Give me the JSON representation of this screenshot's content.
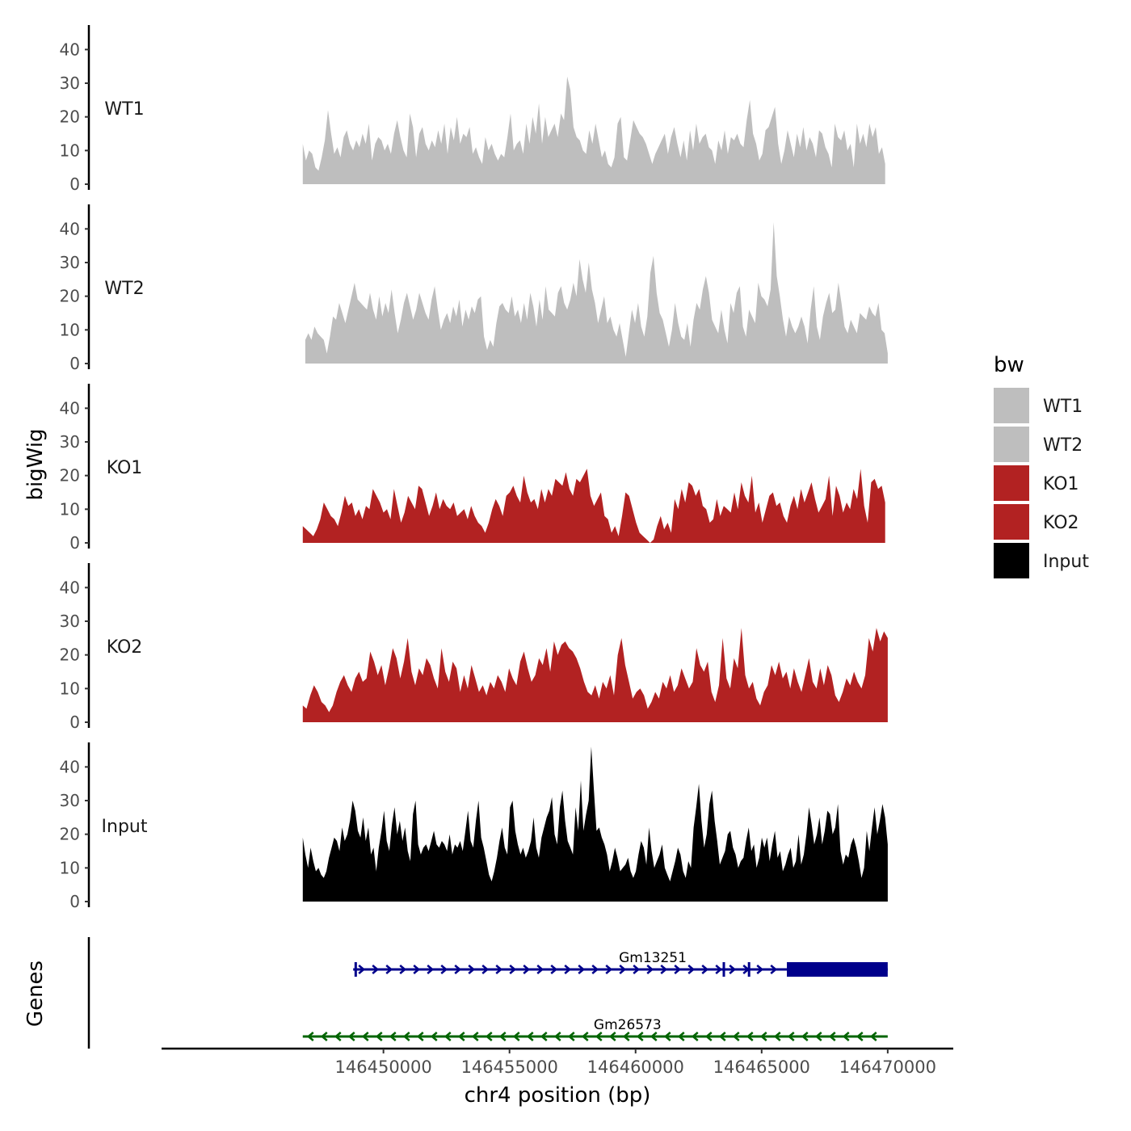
{
  "chart_data": {
    "type": "area",
    "title": "",
    "ylabel": "bigWig",
    "xlabel": "chr4 position (bp)",
    "xlim": [
      146441200,
      146472600
    ],
    "ylim": [
      0,
      48
    ],
    "y_ticks": [
      0,
      10,
      20,
      30,
      40
    ],
    "y_tick_labels": [
      "0",
      "10",
      "20",
      "30",
      "40"
    ],
    "x_ticks": [
      146450000,
      146455000,
      146460000,
      146465000,
      146470000
    ],
    "x_tick_labels": [
      "146450000",
      "146455000",
      "146460000",
      "146465000",
      "146470000"
    ],
    "genes_track_label": "Genes",
    "legend": {
      "title": "bw",
      "position": "right",
      "entries": [
        {
          "label": "WT1",
          "color": "#bebebe"
        },
        {
          "label": "WT2",
          "color": "#bebebe"
        },
        {
          "label": "KO1",
          "color": "#b22222"
        },
        {
          "label": "KO2",
          "color": "#b22222"
        },
        {
          "label": "Input",
          "color": "#000000"
        }
      ]
    },
    "series": [
      {
        "name": "WT1",
        "color": "#bebebe",
        "x_start": 146446800,
        "x_end": 146469900,
        "values": [
          12,
          7,
          10,
          9,
          5,
          4,
          8,
          13,
          22,
          15,
          9,
          11,
          8,
          14,
          16,
          12,
          10,
          13,
          11,
          15,
          12,
          18,
          7,
          12,
          14,
          13,
          10,
          12,
          9,
          15,
          19,
          14,
          10,
          8,
          21,
          17,
          8,
          15,
          17,
          12,
          10,
          13,
          11,
          16,
          12,
          18,
          9,
          17,
          13,
          20,
          12,
          15,
          14,
          17,
          9,
          11,
          8,
          6,
          14,
          10,
          12,
          9,
          7,
          9,
          8,
          14,
          21,
          10,
          12,
          13,
          9,
          18,
          12,
          20,
          15,
          24,
          12,
          20,
          14,
          16,
          18,
          14,
          21,
          19,
          32,
          28,
          17,
          14,
          13,
          10,
          9,
          16,
          12,
          18,
          13,
          8,
          10,
          6,
          5,
          8,
          18,
          20,
          8,
          7,
          13,
          19,
          17,
          15,
          14,
          12,
          9,
          6,
          9,
          11,
          13,
          15,
          9,
          14,
          17,
          12,
          8,
          13,
          7,
          16,
          10,
          18,
          12,
          14,
          15,
          11,
          10,
          6,
          13,
          10,
          16,
          9,
          14,
          13,
          15,
          12,
          11,
          19,
          25,
          15,
          12,
          7,
          9,
          16,
          17,
          20,
          23,
          12,
          6,
          10,
          16,
          12,
          8,
          15,
          11,
          17,
          10,
          14,
          12,
          8,
          16,
          15,
          11,
          9,
          5,
          18,
          14,
          13,
          16,
          10,
          12,
          5,
          18,
          12,
          15,
          11,
          18,
          14,
          17,
          9,
          11,
          6
        ]
      },
      {
        "name": "WT2",
        "color": "#bebebe",
        "x_start": 146446900,
        "x_end": 146470000,
        "values": [
          7,
          9,
          7,
          11,
          9,
          8,
          7,
          3,
          8,
          14,
          13,
          18,
          15,
          12,
          16,
          20,
          24,
          19,
          18,
          17,
          16,
          21,
          16,
          13,
          20,
          14,
          18,
          15,
          22,
          15,
          9,
          13,
          18,
          21,
          17,
          13,
          16,
          21,
          18,
          15,
          13,
          19,
          23,
          16,
          10,
          13,
          15,
          12,
          17,
          14,
          19,
          11,
          16,
          13,
          17,
          15,
          19,
          20,
          8,
          4,
          7,
          5,
          12,
          17,
          18,
          16,
          15,
          20,
          14,
          16,
          12,
          18,
          13,
          21,
          17,
          11,
          19,
          13,
          23,
          16,
          15,
          14,
          21,
          23,
          18,
          16,
          19,
          24,
          20,
          31,
          25,
          21,
          30,
          22,
          18,
          12,
          16,
          20,
          12,
          14,
          10,
          8,
          12,
          7,
          2,
          9,
          16,
          12,
          18,
          11,
          8,
          14,
          27,
          32,
          21,
          15,
          13,
          9,
          5,
          10,
          18,
          12,
          8,
          7,
          12,
          5,
          13,
          18,
          16,
          22,
          26,
          21,
          13,
          11,
          9,
          16,
          10,
          6,
          18,
          15,
          21,
          23,
          11,
          8,
          16,
          14,
          12,
          24,
          20,
          19,
          17,
          22,
          42,
          26,
          20,
          13,
          8,
          14,
          11,
          9,
          11,
          14,
          11,
          6,
          16,
          23,
          11,
          7,
          14,
          18,
          21,
          15,
          16,
          24,
          18,
          11,
          9,
          13,
          11,
          9,
          15,
          14,
          13,
          17,
          15,
          14,
          18,
          10,
          9,
          3
        ]
      },
      {
        "name": "KO1",
        "color": "#b22222",
        "x_start": 146446800,
        "x_end": 146469900,
        "values": [
          5,
          4,
          3,
          2,
          4,
          7,
          12,
          10,
          8,
          7,
          5,
          9,
          14,
          11,
          12,
          8,
          10,
          7,
          11,
          10,
          16,
          14,
          12,
          9,
          10,
          7,
          16,
          11,
          6,
          9,
          14,
          12,
          10,
          17,
          16,
          12,
          8,
          11,
          15,
          10,
          13,
          11,
          10,
          12,
          8,
          9,
          10,
          7,
          11,
          8,
          6,
          5,
          3,
          6,
          10,
          13,
          11,
          8,
          14,
          15,
          17,
          14,
          12,
          20,
          15,
          12,
          13,
          10,
          16,
          12,
          16,
          14,
          19,
          18,
          17,
          21,
          16,
          14,
          19,
          18,
          20,
          22,
          14,
          11,
          13,
          15,
          8,
          7,
          3,
          5,
          2,
          8,
          15,
          14,
          10,
          6,
          3,
          2,
          1,
          0,
          1,
          5,
          8,
          4,
          6,
          3,
          13,
          10,
          16,
          12,
          18,
          17,
          14,
          16,
          11,
          10,
          6,
          7,
          13,
          8,
          11,
          10,
          9,
          15,
          10,
          18,
          14,
          12,
          20,
          9,
          12,
          6,
          10,
          14,
          15,
          11,
          12,
          8,
          6,
          11,
          14,
          10,
          16,
          12,
          15,
          18,
          13,
          9,
          11,
          13,
          20,
          8,
          17,
          14,
          9,
          12,
          10,
          16,
          13,
          22,
          11,
          6,
          18,
          19,
          16,
          17,
          12
        ]
      },
      {
        "name": "KO2",
        "color": "#b22222",
        "x_start": 146446800,
        "x_end": 146470000,
        "values": [
          5,
          4,
          8,
          11,
          9,
          6,
          5,
          3,
          5,
          9,
          12,
          14,
          11,
          9,
          13,
          15,
          12,
          13,
          21,
          18,
          14,
          17,
          11,
          16,
          22,
          19,
          13,
          18,
          25,
          15,
          11,
          16,
          14,
          19,
          17,
          13,
          10,
          22,
          15,
          12,
          18,
          16,
          9,
          14,
          10,
          17,
          13,
          9,
          11,
          8,
          12,
          10,
          14,
          12,
          9,
          16,
          13,
          11,
          18,
          21,
          16,
          12,
          14,
          19,
          17,
          22,
          15,
          24,
          20,
          23,
          24,
          22,
          21,
          19,
          16,
          12,
          9,
          8,
          11,
          7,
          12,
          10,
          14,
          8,
          20,
          25,
          17,
          12,
          7,
          9,
          10,
          8,
          4,
          6,
          9,
          7,
          12,
          10,
          14,
          9,
          11,
          16,
          13,
          10,
          12,
          22,
          17,
          15,
          18,
          9,
          6,
          11,
          25,
          13,
          10,
          19,
          16,
          28,
          14,
          10,
          12,
          7,
          5,
          9,
          11,
          17,
          14,
          18,
          13,
          15,
          10,
          16,
          12,
          9,
          14,
          19,
          12,
          10,
          16,
          11,
          17,
          14,
          8,
          6,
          9,
          13,
          11,
          15,
          12,
          10,
          14,
          25,
          21,
          28,
          24,
          27,
          25
        ]
      },
      {
        "name": "Input",
        "color": "#000000",
        "x_start": 146446800,
        "x_end": 146470000,
        "values": [
          19,
          14,
          10,
          16,
          12,
          9,
          10,
          8,
          7,
          9,
          13,
          16,
          19,
          18,
          15,
          22,
          18,
          20,
          24,
          30,
          27,
          21,
          19,
          25,
          18,
          22,
          14,
          16,
          9,
          16,
          21,
          27,
          18,
          15,
          23,
          28,
          20,
          24,
          18,
          22,
          15,
          12,
          26,
          30,
          17,
          14,
          16,
          17,
          15,
          18,
          21,
          17,
          16,
          18,
          17,
          15,
          20,
          14,
          17,
          16,
          18,
          15,
          21,
          27,
          18,
          16,
          24,
          30,
          19,
          16,
          12,
          8,
          6,
          9,
          13,
          18,
          22,
          16,
          14,
          28,
          30,
          21,
          17,
          14,
          16,
          13,
          15,
          18,
          25,
          16,
          13,
          19,
          22,
          25,
          27,
          31,
          20,
          17,
          28,
          33,
          24,
          18,
          16,
          14,
          28,
          21,
          36,
          21,
          26,
          30,
          46,
          33,
          21,
          22,
          19,
          17,
          14,
          9,
          12,
          16,
          13,
          9,
          10,
          11,
          13,
          9,
          7,
          9,
          14,
          18,
          16,
          11,
          22,
          15,
          10,
          12,
          14,
          17,
          10,
          8,
          6,
          9,
          12,
          16,
          14,
          9,
          7,
          12,
          10,
          22,
          28,
          35,
          24,
          16,
          20,
          29,
          33,
          24,
          18,
          11,
          13,
          15,
          20,
          21,
          16,
          14,
          10,
          12,
          13,
          18,
          22,
          15,
          17,
          10,
          13,
          19,
          16,
          19,
          12,
          17,
          21,
          13,
          15,
          9,
          11,
          14,
          16,
          10,
          12,
          20,
          11,
          14,
          20,
          28,
          23,
          17,
          20,
          25,
          17,
          21,
          27,
          26,
          20,
          22,
          29,
          15,
          11,
          14,
          13,
          17,
          19,
          16,
          12,
          7,
          10,
          21,
          15,
          22,
          28,
          20,
          24,
          29,
          25,
          17
        ]
      }
    ],
    "genes": [
      {
        "name": "Gm13251",
        "color": "#00008b",
        "strand": "+",
        "start": 146448800,
        "end": 146470000,
        "thick_start": 146466000,
        "thick_end": 146470000,
        "exon_marks": [
          146448900,
          146463500,
          146464500
        ]
      },
      {
        "name": "Gm26573",
        "color": "#006400",
        "strand": "-",
        "start": 146446800,
        "end": 146470000
      }
    ]
  }
}
